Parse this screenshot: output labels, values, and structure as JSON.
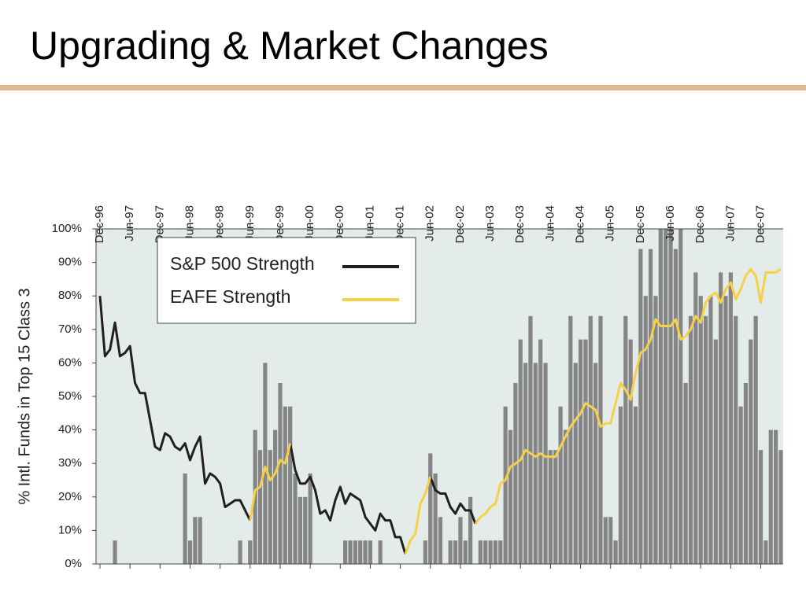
{
  "header": {
    "title": "Upgrading & Market Changes"
  },
  "chart_data": {
    "type": "bar-line",
    "y_label": "% Intl. Funds in Top 15 Class 3",
    "categories": [
      "Dec-96",
      null,
      null,
      null,
      null,
      null,
      "Jun-97",
      null,
      null,
      null,
      null,
      null,
      "Dec-97",
      null,
      null,
      null,
      null,
      null,
      "Jun-98",
      null,
      null,
      null,
      null,
      null,
      "Dec-98",
      null,
      null,
      null,
      null,
      null,
      "Jun-99",
      null,
      null,
      null,
      null,
      null,
      "Dec-99",
      null,
      null,
      null,
      null,
      null,
      "Jun-00",
      null,
      null,
      null,
      null,
      null,
      "Dec-00",
      null,
      null,
      null,
      null,
      null,
      "Jun-01",
      null,
      null,
      null,
      null,
      null,
      "Dec-01",
      null,
      null,
      null,
      null,
      null,
      "Jun-02",
      null,
      null,
      null,
      null,
      null,
      "Dec-02",
      null,
      null,
      null,
      null,
      null,
      "Jun-03",
      null,
      null,
      null,
      null,
      null,
      "Dec-03",
      null,
      null,
      null,
      null,
      null,
      "Jun-04",
      null,
      null,
      null,
      null,
      null,
      "Dec-04",
      null,
      null,
      null,
      null,
      null,
      "Jun-05",
      null,
      null,
      null,
      null,
      null,
      "Dec-05",
      null,
      null,
      null,
      null,
      null,
      "Jun-06",
      null,
      null,
      null,
      null,
      null,
      "Dec-06",
      null,
      null,
      null,
      null,
      null,
      "Jun-07",
      null,
      null,
      null,
      null,
      null,
      "Dec-07",
      null,
      null,
      null,
      null
    ],
    "bars": {
      "color": "#858585",
      "values": [
        0,
        0,
        0,
        7,
        0,
        0,
        0,
        0,
        0,
        0,
        0,
        0,
        0,
        0,
        0,
        0,
        0,
        27,
        7,
        14,
        14,
        0,
        0,
        0,
        0,
        0,
        0,
        0,
        7,
        0,
        7,
        40,
        34,
        60,
        34,
        40,
        54,
        47,
        47,
        27,
        20,
        20,
        27,
        0,
        0,
        0,
        0,
        0,
        0,
        7,
        7,
        7,
        7,
        7,
        7,
        0,
        7,
        0,
        0,
        0,
        0,
        0,
        0,
        0,
        0,
        7,
        33,
        27,
        14,
        0,
        7,
        7,
        14,
        7,
        20,
        0,
        7,
        7,
        7,
        7,
        7,
        47,
        40,
        54,
        67,
        60,
        74,
        60,
        67,
        60,
        34,
        34,
        47,
        40,
        74,
        60,
        67,
        67,
        74,
        60,
        74,
        14,
        14,
        7,
        47,
        74,
        67,
        47,
        94,
        80,
        94,
        80,
        100,
        100,
        100,
        94,
        100,
        54,
        74,
        87,
        80,
        74,
        80,
        67,
        87,
        80,
        87,
        74,
        47,
        54,
        67,
        74,
        34,
        7,
        40,
        40,
        34
      ]
    },
    "series": [
      {
        "name": "S&P 500 Strength",
        "color": "#231f20",
        "values": [
          80,
          62,
          64,
          72,
          62,
          63,
          65,
          54,
          51,
          51,
          43,
          35,
          34,
          39,
          38,
          35,
          34,
          36,
          31,
          35,
          38,
          24,
          27,
          26,
          24,
          17,
          18,
          19,
          19,
          16,
          13,
          null,
          null,
          null,
          null,
          null,
          null,
          null,
          36,
          28,
          24,
          24,
          26,
          22,
          15,
          16,
          13,
          19,
          23,
          18,
          21,
          20,
          19,
          14,
          12,
          10,
          15,
          13,
          13,
          8,
          8,
          3,
          null,
          null,
          null,
          null,
          26,
          22,
          21,
          21,
          17,
          15,
          18,
          16,
          16,
          12,
          null,
          null,
          null,
          null,
          null,
          null,
          null,
          null,
          null,
          null,
          null,
          null,
          null,
          null,
          null,
          null,
          null,
          null,
          null,
          null,
          null,
          null,
          null,
          null,
          null,
          null,
          null,
          null,
          null,
          null,
          null,
          null,
          null,
          null,
          null,
          null,
          null,
          null,
          null,
          null,
          null,
          null,
          null,
          null,
          null,
          null,
          null,
          null,
          null,
          null,
          null,
          null,
          null,
          null,
          null,
          null,
          null,
          null,
          null,
          null,
          null
        ]
      },
      {
        "name": "EAFE Strength",
        "color": "#f7d04a",
        "values": [
          null,
          null,
          null,
          null,
          null,
          null,
          null,
          null,
          null,
          null,
          null,
          null,
          null,
          null,
          null,
          null,
          null,
          null,
          null,
          null,
          null,
          null,
          null,
          null,
          null,
          null,
          null,
          null,
          null,
          null,
          13,
          22,
          23,
          29,
          25,
          27,
          31,
          30,
          36,
          null,
          null,
          null,
          null,
          null,
          null,
          null,
          null,
          null,
          null,
          null,
          null,
          null,
          null,
          null,
          null,
          null,
          null,
          null,
          null,
          null,
          null,
          3,
          7,
          9,
          18,
          21,
          26,
          null,
          null,
          null,
          null,
          null,
          null,
          null,
          null,
          12,
          14,
          15,
          17,
          18,
          24,
          25,
          29,
          30,
          31,
          34,
          33,
          32,
          33,
          32,
          32,
          32,
          35,
          38,
          41,
          43,
          45,
          48,
          47,
          46,
          41,
          42,
          42,
          48,
          54,
          52,
          49,
          57,
          63,
          64,
          67,
          73,
          71,
          71,
          71,
          73,
          67,
          68,
          70,
          74,
          72,
          78,
          80,
          81,
          78,
          82,
          84,
          79,
          82,
          86,
          88,
          86,
          78,
          87,
          87,
          87,
          88
        ]
      }
    ],
    "ylim": [
      0,
      100
    ],
    "yticks": [
      {
        "value": 0,
        "label": "0%"
      },
      {
        "value": 10,
        "label": "10%"
      },
      {
        "value": 20,
        "label": "20%"
      },
      {
        "value": 30,
        "label": "30%"
      },
      {
        "value": 40,
        "label": "40%"
      },
      {
        "value": 50,
        "label": "50%"
      },
      {
        "value": 60,
        "label": "60%"
      },
      {
        "value": 70,
        "label": "70%"
      },
      {
        "value": 80,
        "label": "80%"
      },
      {
        "value": 90,
        "label": "90%"
      },
      {
        "value": 100,
        "label": "100%"
      }
    ],
    "background": "#e3ece8"
  }
}
